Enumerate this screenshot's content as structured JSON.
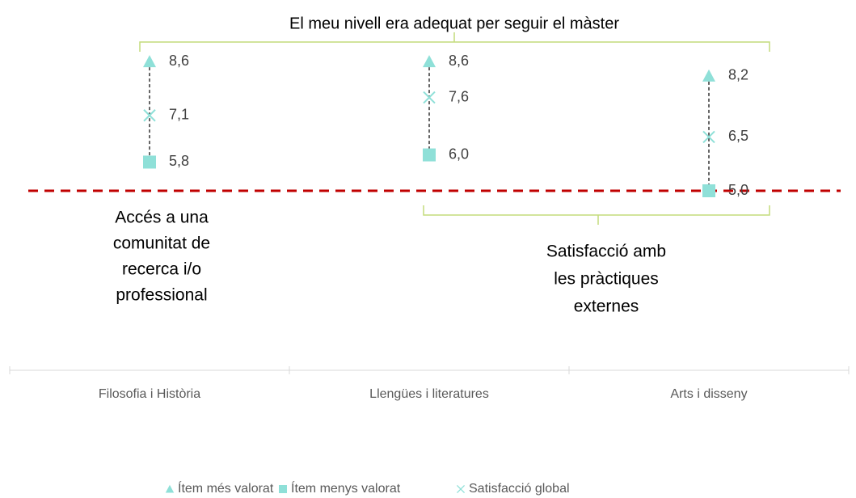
{
  "chart_data": {
    "type": "range",
    "annotations": [
      {
        "lines": [
          "El meu nivell era adequat per seguir el màster"
        ]
      },
      {
        "lines": [
          "Accés a una",
          "comunitat de",
          "recerca i/o",
          "professional"
        ]
      },
      {
        "lines": [
          "Satisfacció amb",
          "les pràctiques",
          "externes"
        ]
      }
    ],
    "categories": [
      "Filosofia i Història",
      "Llengües i literatures",
      "Arts i disseny"
    ],
    "series": [
      {
        "name": "Ítem més valorat",
        "color": "#8fe0d8",
        "marker": "triangle",
        "values": [
          8.6,
          8.6,
          8.2
        ],
        "value_labels": [
          "8,6",
          "8,6",
          "8,2"
        ]
      },
      {
        "name": "Ítem menys valorat",
        "color": "#8fe0d8",
        "marker": "square",
        "values": [
          5.8,
          6.0,
          5.0
        ],
        "value_labels": [
          "5,8",
          "6,0",
          "5,0"
        ]
      },
      {
        "name": "Satisfacció global",
        "color": "#8fe0d8",
        "marker": "cross",
        "values": [
          7.1,
          7.6,
          6.5
        ],
        "value_labels": [
          "7,1",
          "7,6",
          "6,5"
        ]
      }
    ],
    "reference_line": {
      "value": 5,
      "color": "#c00000"
    },
    "ylim": [
      0,
      10
    ],
    "legend": "bottom"
  }
}
